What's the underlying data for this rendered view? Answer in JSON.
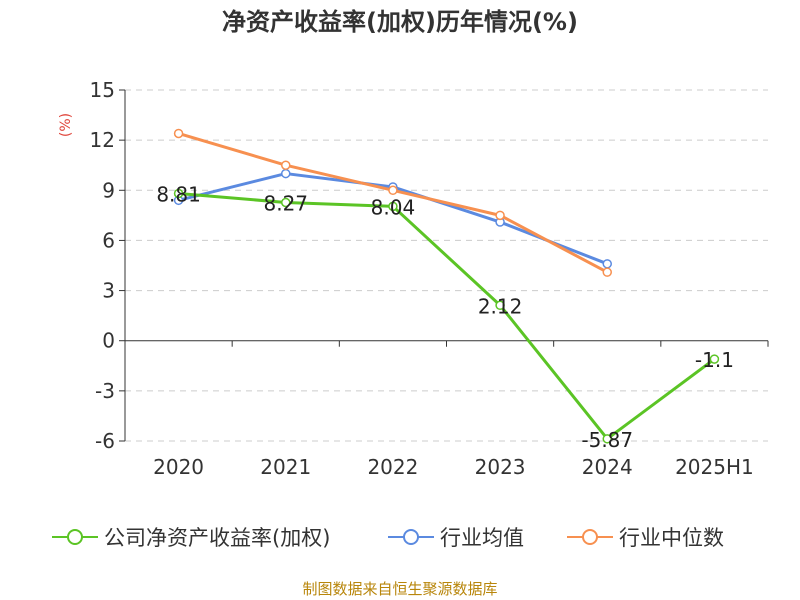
{
  "chart_data": {
    "type": "line",
    "title": "净资产收益率(加权)历年情况(%)",
    "ylabel": "(%)",
    "categories": [
      "2020",
      "2021",
      "2022",
      "2023",
      "2024",
      "2025H1"
    ],
    "ylim": [
      -6,
      15
    ],
    "yticks": [
      15,
      12,
      9,
      6,
      3,
      0,
      -3,
      -6
    ],
    "grid": true,
    "legend_position": "bottom",
    "series": [
      {
        "name": "公司净资产收益率(加权)",
        "color": "#5bc425",
        "values": [
          8.81,
          8.27,
          8.04,
          2.12,
          -5.87,
          -1.1
        ],
        "labels": [
          "8.81",
          "8.27",
          "8.04",
          "2.12",
          "-5.87",
          "-1.1"
        ]
      },
      {
        "name": "行业均值",
        "color": "#5b8ae0",
        "values": [
          8.4,
          10.0,
          9.2,
          7.1,
          4.6,
          null
        ]
      },
      {
        "name": "行业中位数",
        "color": "#f79050",
        "values": [
          12.4,
          10.5,
          9.0,
          7.5,
          4.1,
          null
        ]
      }
    ]
  },
  "source_note": "制图数据来自恒生聚源数据库"
}
